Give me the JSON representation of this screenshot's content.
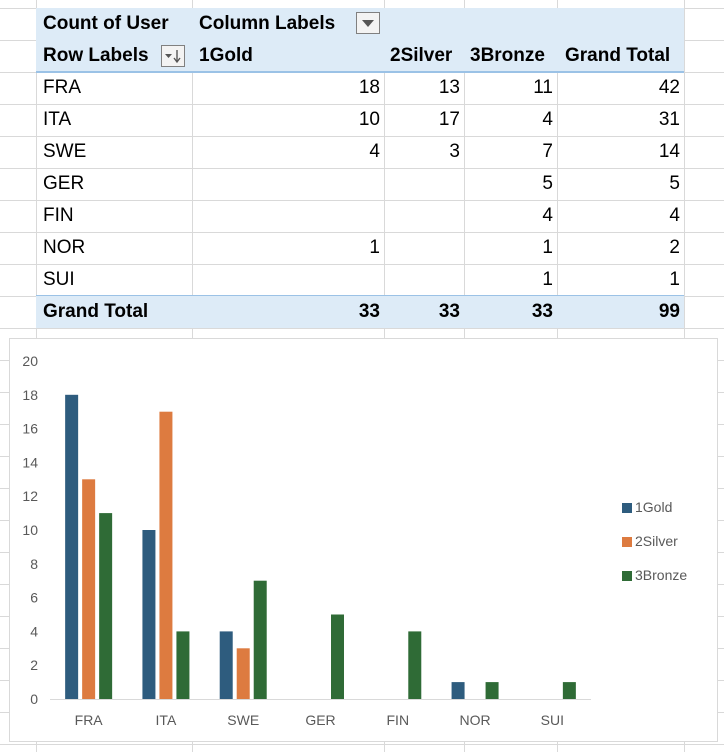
{
  "pivot": {
    "header1": {
      "count_label": "Count of User",
      "column_labels": "Column Labels"
    },
    "header2": {
      "row_labels": "Row Labels",
      "cols": [
        "1Gold",
        "2Silver",
        "3Bronze",
        "Grand Total"
      ]
    },
    "rows": [
      {
        "label": "FRA",
        "values": [
          "18",
          "13",
          "11",
          "42"
        ]
      },
      {
        "label": "ITA",
        "values": [
          "10",
          "17",
          "4",
          "31"
        ]
      },
      {
        "label": "SWE",
        "values": [
          "4",
          "3",
          "7",
          "14"
        ]
      },
      {
        "label": "GER",
        "values": [
          "",
          "",
          "5",
          "5"
        ]
      },
      {
        "label": "FIN",
        "values": [
          "",
          "",
          "4",
          "4"
        ]
      },
      {
        "label": "NOR",
        "values": [
          "1",
          "",
          "1",
          "2"
        ]
      },
      {
        "label": "SUI",
        "values": [
          "",
          "",
          "1",
          "1"
        ]
      }
    ],
    "total": {
      "label": "Grand Total",
      "values": [
        "33",
        "33",
        "33",
        "99"
      ]
    }
  },
  "chart_data": {
    "type": "bar",
    "categories": [
      "FRA",
      "ITA",
      "SWE",
      "GER",
      "FIN",
      "NOR",
      "SUI"
    ],
    "series": [
      {
        "name": "1Gold",
        "values": [
          18,
          10,
          4,
          0,
          0,
          1,
          0
        ],
        "color": "#2e5c7e"
      },
      {
        "name": "2Silver",
        "values": [
          13,
          17,
          3,
          0,
          0,
          0,
          0
        ],
        "color": "#dd7b40"
      },
      {
        "name": "3Bronze",
        "values": [
          11,
          4,
          7,
          5,
          4,
          1,
          1
        ],
        "color": "#2f6b36"
      }
    ],
    "ylim": [
      0,
      20
    ],
    "yticks": [
      0,
      2,
      4,
      6,
      8,
      10,
      12,
      14,
      16,
      18,
      20
    ],
    "grid": false,
    "legend": "right"
  }
}
